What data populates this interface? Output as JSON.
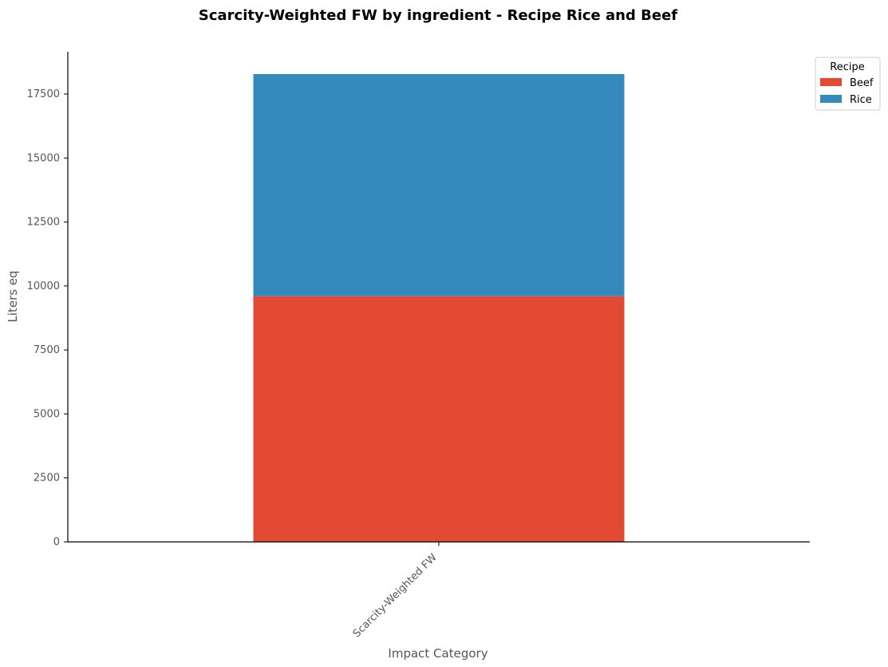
{
  "chart_data": {
    "type": "bar",
    "stacked": true,
    "title": "Scarcity-Weighted FW by ingredient - Recipe Rice and Beef",
    "xlabel": "Impact Category",
    "ylabel": "Liters eq",
    "categories": [
      "Scarcity-Weighted FW"
    ],
    "series": [
      {
        "name": "Beef",
        "values": [
          9600
        ],
        "color": "#e24a33"
      },
      {
        "name": "Rice",
        "values": [
          8680
        ],
        "color": "#348abd"
      }
    ],
    "ylim": [
      0,
      19150
    ],
    "yticks": [
      0,
      2500,
      5000,
      7500,
      10000,
      12500,
      15000,
      17500
    ],
    "grid": false,
    "legend": {
      "title": "Recipe",
      "position": "top-right-outside"
    }
  }
}
